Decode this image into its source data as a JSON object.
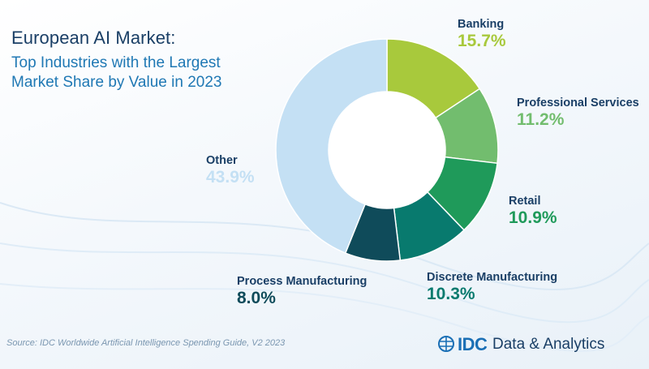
{
  "chart_data": {
    "type": "pie",
    "title": "European AI Market:",
    "subtitle": "Top Industries with the Largest Market Share by Value in 2023",
    "categories": [
      "Banking",
      "Professional Services",
      "Retail",
      "Discrete Manufacturing",
      "Process Manufacturing",
      "Other"
    ],
    "values": [
      15.7,
      11.2,
      10.9,
      10.3,
      8.0,
      43.9
    ],
    "value_labels": [
      "15.7%",
      "11.2%",
      "10.9%",
      "10.3%",
      "8.0%",
      "43.9%"
    ],
    "colors": [
      "#a8c93c",
      "#72bd6e",
      "#1f9a5a",
      "#087a6e",
      "#0f4b5a",
      "#c4e0f4"
    ],
    "label_colors": [
      "#a8c93c",
      "#72bd6e",
      "#1f9a5a",
      "#087a6e",
      "#0f4b5a",
      "#c4e0f4"
    ],
    "legend": "none"
  },
  "footer": {
    "source": "Source: IDC Worldwide Artificial Intelligence Spending Guide, V2 2023",
    "brand": "IDC",
    "brand_tagline": "Data & Analytics"
  }
}
